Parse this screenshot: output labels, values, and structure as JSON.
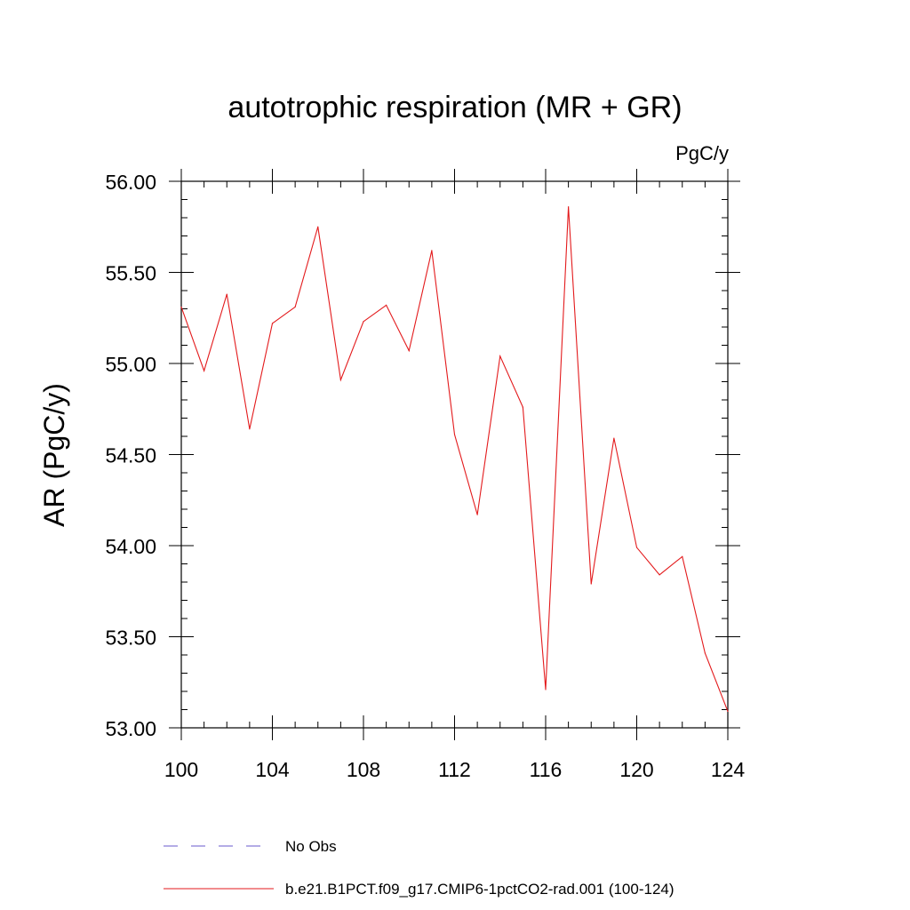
{
  "chart_data": {
    "type": "line",
    "title": "autotrophic respiration (MR + GR)",
    "units": "PgC/y",
    "ylabel": "AR  (PgC/y)",
    "xlabel": "",
    "xlim": [
      100,
      124
    ],
    "ylim": [
      53.0,
      56.0
    ],
    "x_ticks": [
      100,
      104,
      108,
      112,
      116,
      120,
      124
    ],
    "y_ticks": [
      "53.00",
      "53.50",
      "54.00",
      "54.50",
      "55.00",
      "55.50",
      "56.00"
    ],
    "y_tick_values": [
      53.0,
      53.5,
      54.0,
      54.5,
      55.0,
      55.5,
      56.0
    ],
    "grid": false,
    "legend_position": "bottom",
    "series": [
      {
        "name": "b.e21.B1PCT.f09_g17.CMIP6-1pctCO2-rad.001 (100-124)",
        "color": "#e31a1c",
        "style": "solid",
        "x": [
          100,
          101,
          102,
          103,
          104,
          105,
          106,
          107,
          108,
          109,
          110,
          111,
          112,
          113,
          114,
          115,
          116,
          117,
          118,
          119,
          120,
          121,
          122,
          123,
          124
        ],
        "values": [
          55.31,
          54.96,
          55.38,
          54.64,
          55.22,
          55.31,
          55.75,
          54.91,
          55.23,
          55.32,
          55.07,
          55.62,
          54.61,
          54.17,
          55.04,
          54.76,
          53.21,
          55.86,
          53.79,
          54.59,
          53.99,
          53.84,
          53.94,
          53.41,
          53.09
        ]
      }
    ],
    "legend": [
      {
        "name": "No Obs",
        "color": "#6a5acd",
        "style": "dashed"
      },
      {
        "name": "b.e21.B1PCT.f09_g17.CMIP6-1pctCO2-rad.001 (100-124)",
        "color": "#e31a1c",
        "style": "solid"
      }
    ]
  }
}
